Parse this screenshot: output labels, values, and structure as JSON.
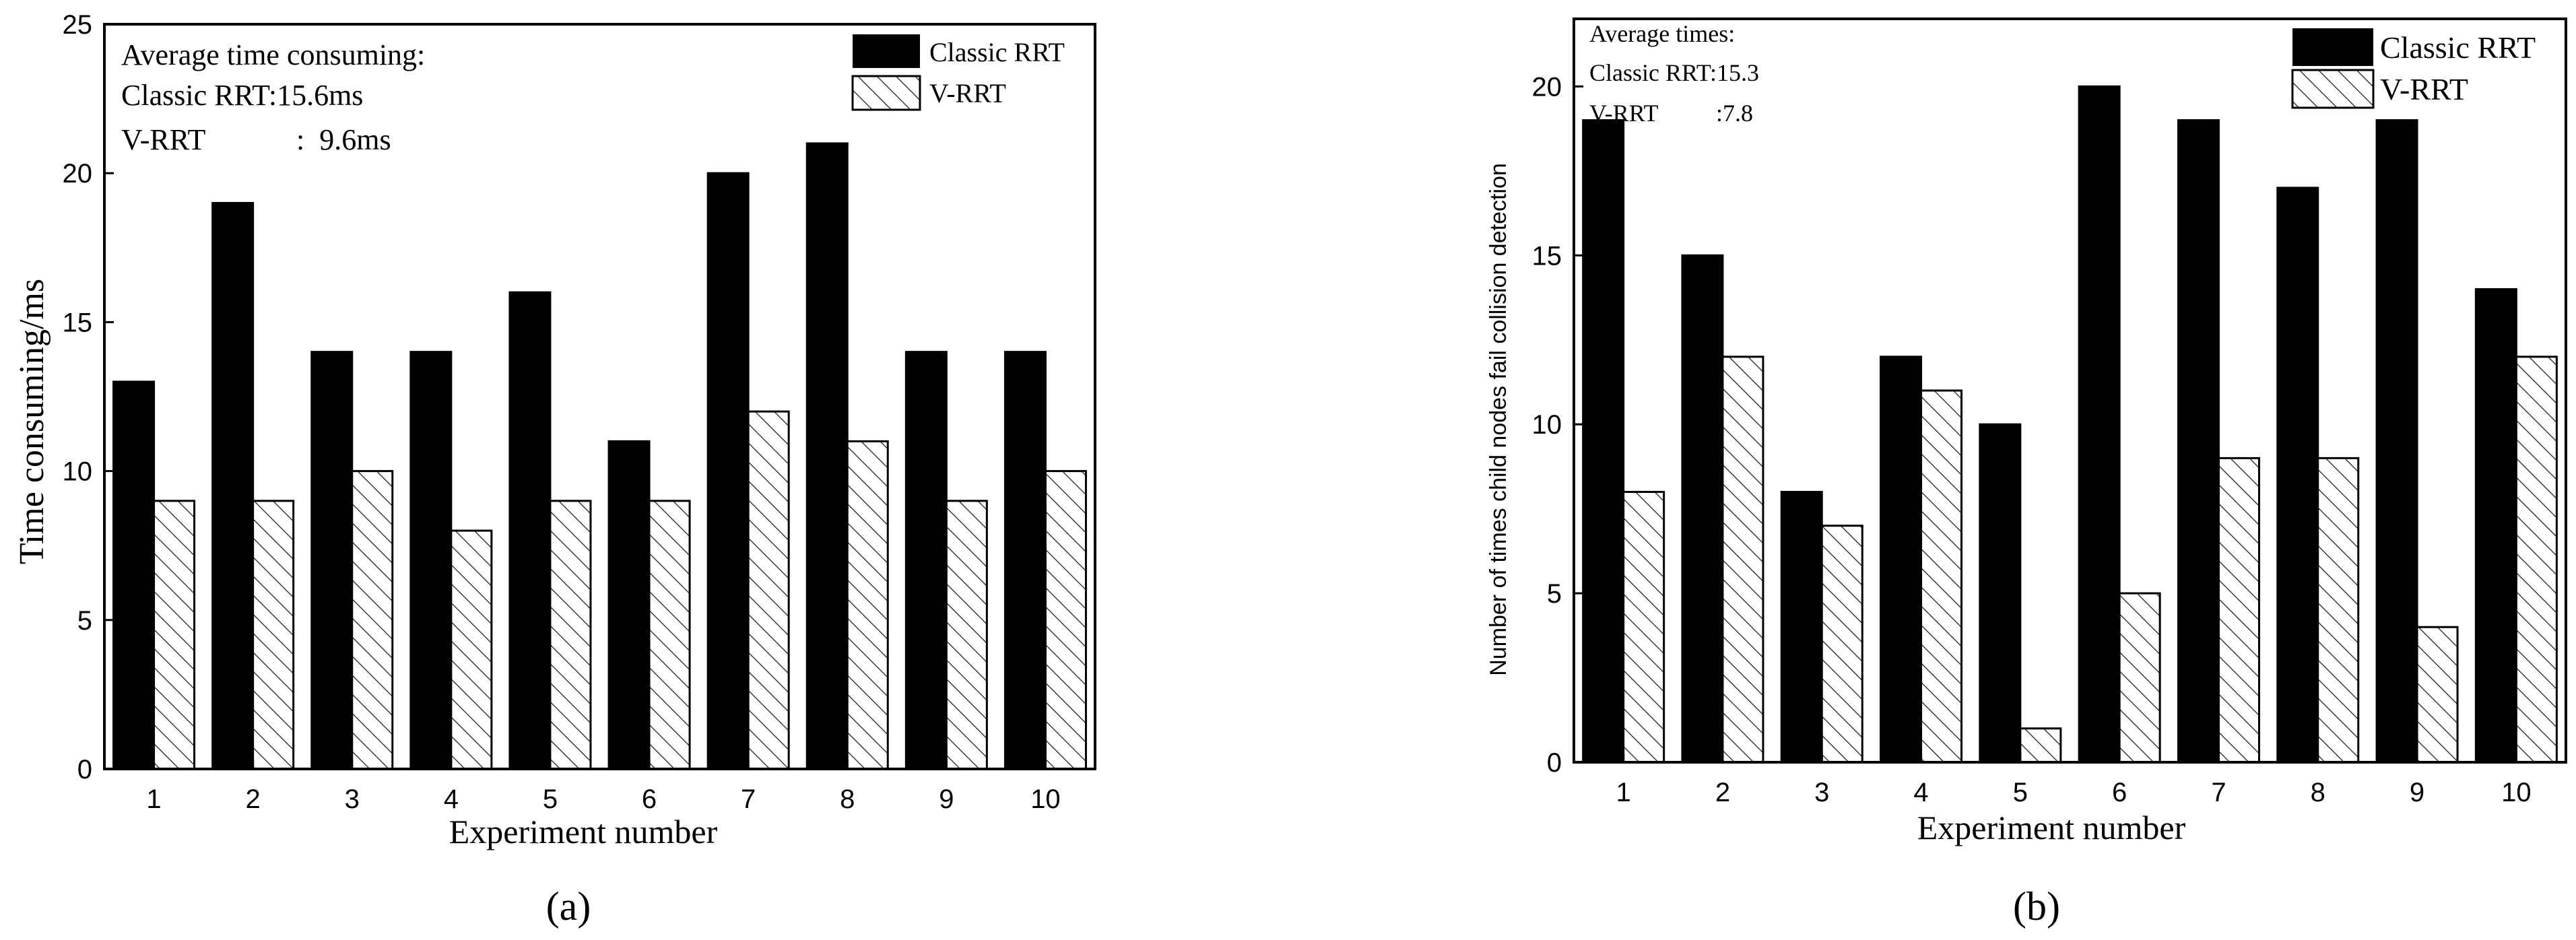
{
  "colors": {
    "classic": "#000000",
    "vrrt_fill": "#ffffff",
    "hatch": "#222222",
    "axis": "#000000",
    "background": "#ffffff"
  },
  "chart_data": [
    {
      "type": "bar",
      "panel_label": "(a)",
      "xlabel": "Experiment number",
      "ylabel": "Time consuming/ms",
      "categories": [
        "1",
        "2",
        "3",
        "4",
        "5",
        "6",
        "7",
        "8",
        "9",
        "10"
      ],
      "ylim": [
        0,
        25
      ],
      "yticks": [
        "0",
        "5",
        "10",
        "15",
        "20",
        "25"
      ],
      "series": [
        {
          "name": "Classic RRT",
          "fill": "solid",
          "values": [
            13,
            19,
            14,
            14,
            16,
            11,
            20,
            21,
            14,
            14
          ]
        },
        {
          "name": "V-RRT",
          "fill": "hatched",
          "values": [
            9,
            9,
            10,
            8,
            9,
            9,
            12,
            11,
            9,
            10
          ]
        }
      ],
      "annotation": {
        "title": "Average time consuming:",
        "line1": "Classic RRT:15.6ms",
        "line2_label": "V-RRT",
        "line2_value": ":  9.6ms"
      },
      "legend_position": "top-right",
      "grid": false
    },
    {
      "type": "bar",
      "panel_label": "(b)",
      "xlabel": "Experiment number",
      "ylabel": "Number of times child nodes fail collision detection",
      "categories": [
        "1",
        "2",
        "3",
        "4",
        "5",
        "6",
        "7",
        "8",
        "9",
        "10"
      ],
      "ylim": [
        0,
        22
      ],
      "yticks": [
        "0",
        "5",
        "10",
        "15",
        "20"
      ],
      "series": [
        {
          "name": "Classic RRT",
          "fill": "solid",
          "values": [
            19,
            15,
            8,
            12,
            10,
            20,
            19,
            17,
            19,
            14
          ]
        },
        {
          "name": "V-RRT",
          "fill": "hatched",
          "values": [
            8,
            12,
            7,
            11,
            1,
            5,
            9,
            9,
            4,
            12
          ]
        }
      ],
      "annotation": {
        "title": "Average times:",
        "line1": "Classic RRT:15.3",
        "line2_label": "V-RRT",
        "line2_value": ":7.8"
      },
      "legend_position": "top-right",
      "grid": false
    }
  ]
}
